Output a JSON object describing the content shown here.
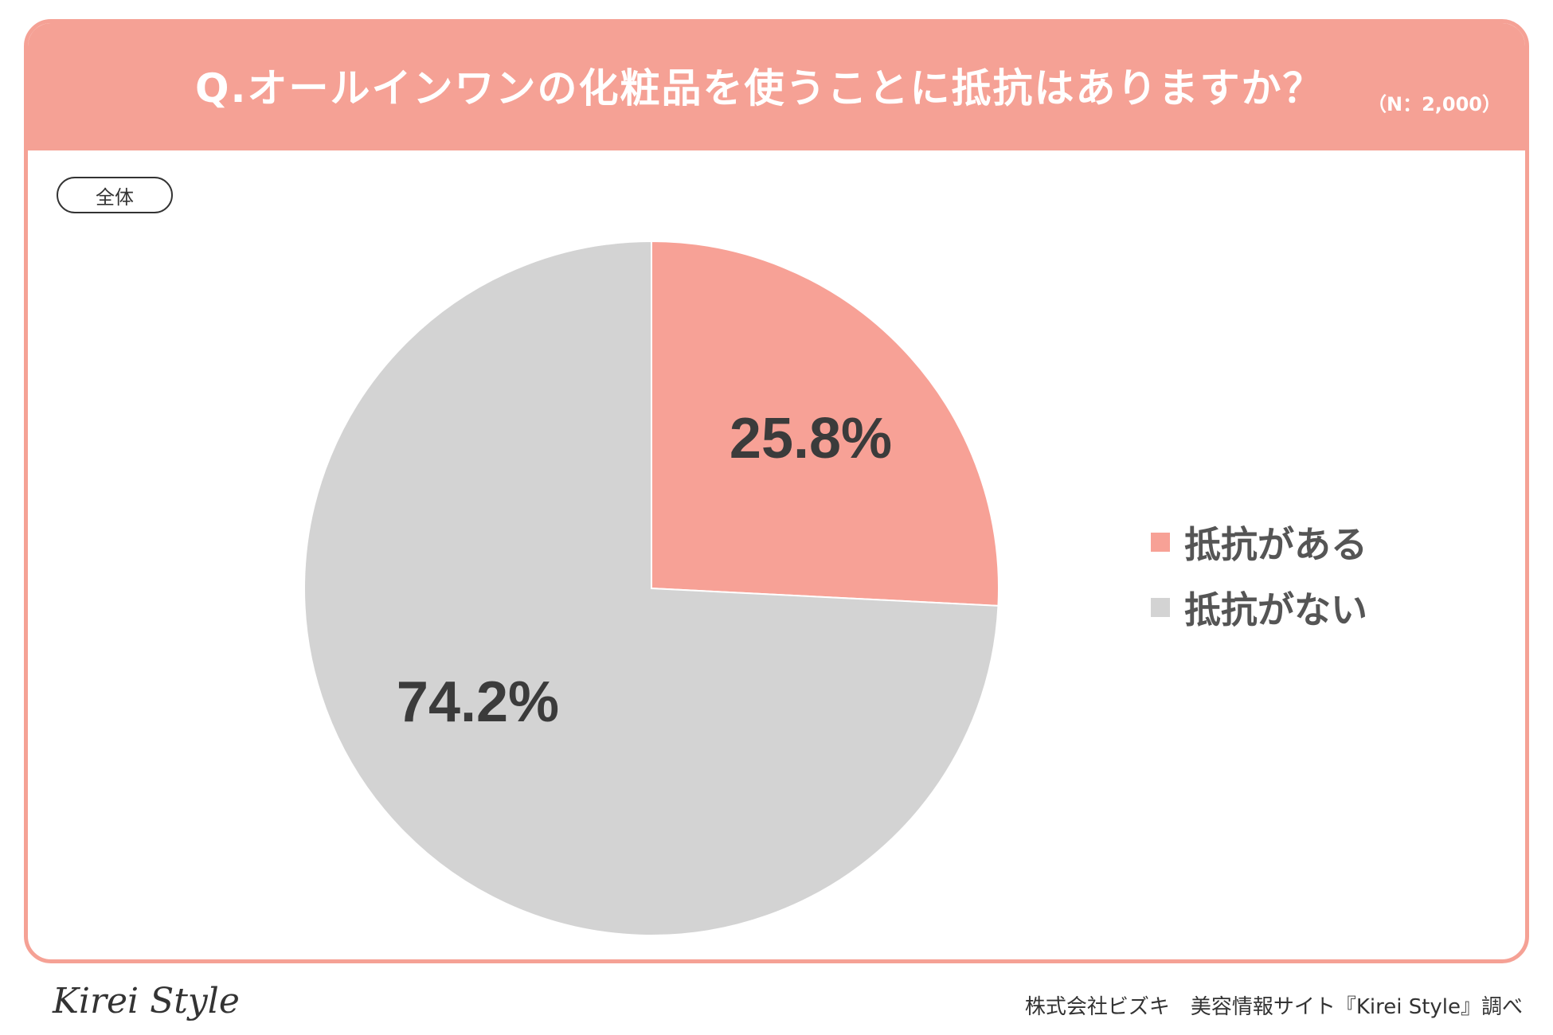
{
  "header": {
    "title": "Q.オールインワンの化粧品を使うことに抵抗はありますか？",
    "sample_size": "（N：2,000）"
  },
  "badge": {
    "label": "全体"
  },
  "chart_data": {
    "type": "pie",
    "title": "Q.オールインワンの化粧品を使うことに抵抗はありますか？",
    "slices": [
      {
        "label": "抵抗がある",
        "value": 25.8,
        "display": "25.8%",
        "color": "#f7a196"
      },
      {
        "label": "抵抗がない",
        "value": 74.2,
        "display": "74.2%",
        "color": "#d3d3d3"
      }
    ],
    "start_angle": "12 o'clock",
    "direction": "clockwise",
    "legend_position": "right"
  },
  "footer": {
    "logo": "Kirei Style",
    "credit": "株式会社ビズキ　美容情報サイト『Kirei Style』調べ"
  },
  "colors": {
    "accent": "#f5a195",
    "text_dark": "#333333"
  }
}
